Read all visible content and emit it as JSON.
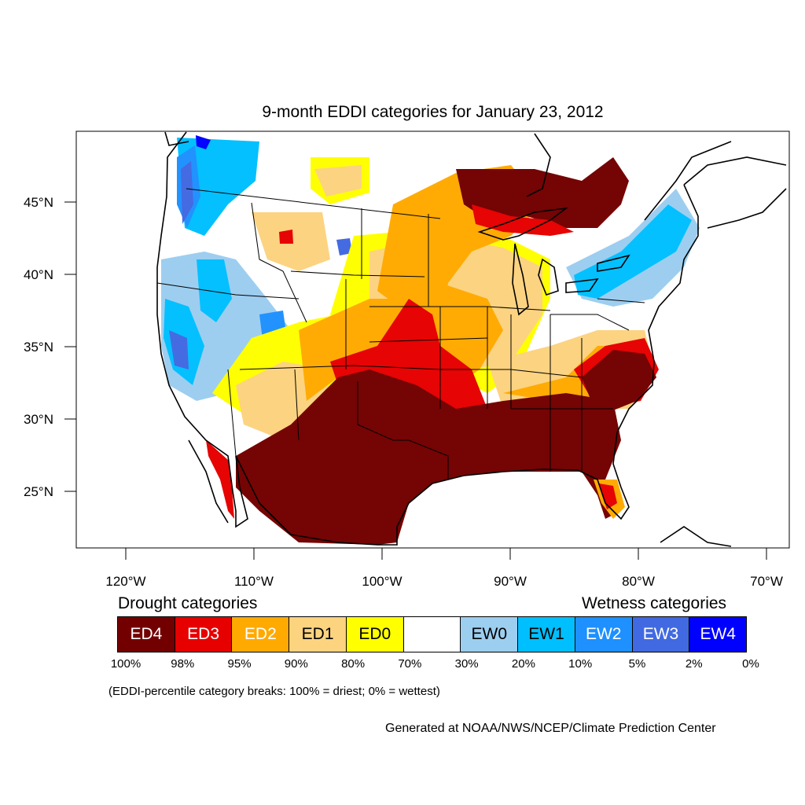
{
  "title": "9-month EDDI categories for January 23, 2012",
  "axes": {
    "lat_ticks": [
      {
        "value": 45,
        "label": "45°N"
      },
      {
        "value": 40,
        "label": "40°N"
      },
      {
        "value": 35,
        "label": "35°N"
      },
      {
        "value": 30,
        "label": "30°N"
      },
      {
        "value": 25,
        "label": "25°N"
      }
    ],
    "lon_ticks": [
      {
        "value": -120,
        "label": "120°W"
      },
      {
        "value": -110,
        "label": "110°W"
      },
      {
        "value": -100,
        "label": "100°W"
      },
      {
        "value": -90,
        "label": "90°W"
      },
      {
        "value": -80,
        "label": "80°W"
      },
      {
        "value": -70,
        "label": "70°W"
      }
    ]
  },
  "legend": {
    "drought_heading": "Drought categories",
    "wetness_heading": "Wetness categories",
    "categories": [
      {
        "label": "ED4",
        "color": "#730000",
        "text_color": "#ffffff"
      },
      {
        "label": "ED3",
        "color": "#e60000",
        "text_color": "#ffffff"
      },
      {
        "label": "ED2",
        "color": "#ffaa00",
        "text_color": "#ffffff"
      },
      {
        "label": "ED1",
        "color": "#fcd37f",
        "text_color": "#000000"
      },
      {
        "label": "ED0",
        "color": "#ffff00",
        "text_color": "#000000"
      },
      {
        "label": "",
        "color": "#ffffff",
        "text_color": "#000000"
      },
      {
        "label": "EW0",
        "color": "#9ccef0",
        "text_color": "#000000"
      },
      {
        "label": "EW1",
        "color": "#00bfff",
        "text_color": "#000000"
      },
      {
        "label": "EW2",
        "color": "#1e90ff",
        "text_color": "#ffffff"
      },
      {
        "label": "EW3",
        "color": "#4169e1",
        "text_color": "#ffffff"
      },
      {
        "label": "EW4",
        "color": "#0000ff",
        "text_color": "#ffffff"
      }
    ],
    "breaks": [
      "100%",
      "98%",
      "95%",
      "90%",
      "80%",
      "70%",
      "30%",
      "20%",
      "10%",
      "5%",
      "2%",
      "0%"
    ]
  },
  "note": "(EDDI-percentile category breaks: 100% = driest; 0% = wettest)",
  "credit": "Generated at NOAA/NWS/NCEP/Climate Prediction Center"
}
